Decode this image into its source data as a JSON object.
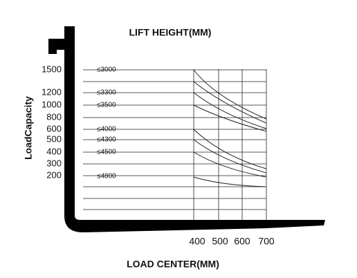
{
  "title": "LIFT HEIGHT(MM)",
  "y_axis_label": "LoadCapacity",
  "x_axis_label": "LOAD CENTER(MM)",
  "capacity_labels": [
    "1500",
    "1200",
    "1000",
    "800",
    "600",
    "500",
    "400",
    "300",
    "200"
  ],
  "lift_height_labels": [
    "≤3000",
    "≤3300",
    "≤3500",
    "≤4000",
    "≤4300",
    "≤4500",
    "≤4800"
  ],
  "load_center_labels": [
    "400",
    "500",
    "600",
    "700"
  ]
}
